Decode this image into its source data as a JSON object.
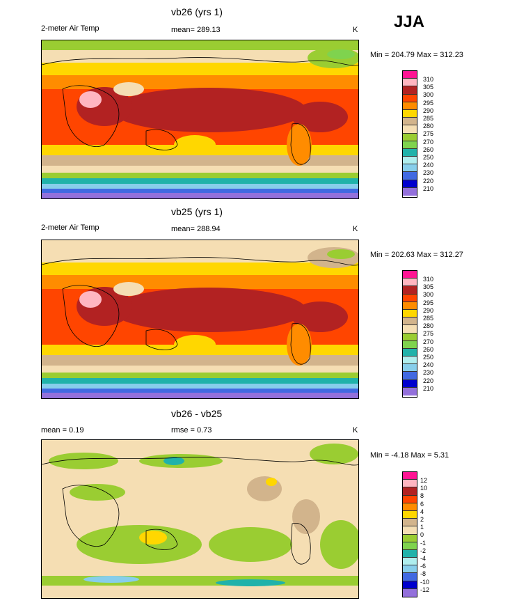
{
  "season": "JJA",
  "panels": [
    {
      "title": "vb26 (yrs 1)",
      "left_label": "2-meter Air Temp",
      "center_label": "mean= 289.13",
      "units": "K",
      "minmax": "Min = 204.79 Max = 312.23",
      "legend_levels": [
        "310",
        "305",
        "300",
        "295",
        "290",
        "285",
        "280",
        "275",
        "270",
        "260",
        "250",
        "240",
        "230",
        "220",
        "210"
      ],
      "colors": [
        "#ff1493",
        "#ffb6c1",
        "#b22222",
        "#ff4500",
        "#ff8c00",
        "#ffd700",
        "#d2b48c",
        "#f5deb3",
        "#9acd32",
        "#7fd34e",
        "#20b2aa",
        "#afeeee",
        "#87ceeb",
        "#4169e1",
        "#0000cd",
        "#9370db"
      ]
    },
    {
      "title": "vb25 (yrs 1)",
      "left_label": "2-meter Air Temp",
      "center_label": "mean= 288.94",
      "units": "K",
      "minmax": "Min = 202.63 Max = 312.27",
      "legend_levels": [
        "310",
        "305",
        "300",
        "295",
        "290",
        "285",
        "280",
        "275",
        "270",
        "260",
        "250",
        "240",
        "230",
        "220",
        "210"
      ],
      "colors": [
        "#ff1493",
        "#ffb6c1",
        "#b22222",
        "#ff4500",
        "#ff8c00",
        "#ffd700",
        "#d2b48c",
        "#f5deb3",
        "#9acd32",
        "#7fd34e",
        "#20b2aa",
        "#afeeee",
        "#87ceeb",
        "#4169e1",
        "#0000cd",
        "#9370db"
      ]
    },
    {
      "title": "vb26 - vb25",
      "left_label": "mean =   0.19",
      "center_label": "rmse =   0.73",
      "units": "K",
      "minmax": "Min =  -4.18 Max =   5.31",
      "legend_levels": [
        "12",
        "10",
        "8",
        "6",
        "4",
        "2",
        "1",
        "0",
        "-1",
        "-2",
        "-4",
        "-6",
        "-8",
        "-10",
        "-12"
      ],
      "colors": [
        "#ff1493",
        "#ffb6c1",
        "#b22222",
        "#ff4500",
        "#ff8c00",
        "#ffd700",
        "#d2b48c",
        "#f5deb3",
        "#9acd32",
        "#7fd34e",
        "#20b2aa",
        "#afeeee",
        "#87ceeb",
        "#4169e1",
        "#0000cd",
        "#9370db"
      ]
    }
  ],
  "chart_data": {
    "type": "heatmap",
    "title": "2-meter Air Temp, JJA",
    "maps": [
      {
        "name": "vb26 (yrs 1)",
        "units": "K",
        "mean": 289.13,
        "min": 204.79,
        "max": 312.23,
        "contour_levels": [
          210,
          220,
          230,
          240,
          250,
          260,
          270,
          275,
          280,
          285,
          290,
          295,
          300,
          305,
          310
        ]
      },
      {
        "name": "vb25 (yrs 1)",
        "units": "K",
        "mean": 288.94,
        "min": 202.63,
        "max": 312.27,
        "contour_levels": [
          210,
          220,
          230,
          240,
          250,
          260,
          270,
          275,
          280,
          285,
          290,
          295,
          300,
          305,
          310
        ]
      },
      {
        "name": "vb26 - vb25",
        "units": "K",
        "mean": 0.19,
        "rmse": 0.73,
        "min": -4.18,
        "max": 5.31,
        "contour_levels": [
          -12,
          -10,
          -8,
          -6,
          -4,
          -2,
          -1,
          0,
          1,
          2,
          4,
          6,
          8,
          10,
          12
        ]
      }
    ]
  }
}
